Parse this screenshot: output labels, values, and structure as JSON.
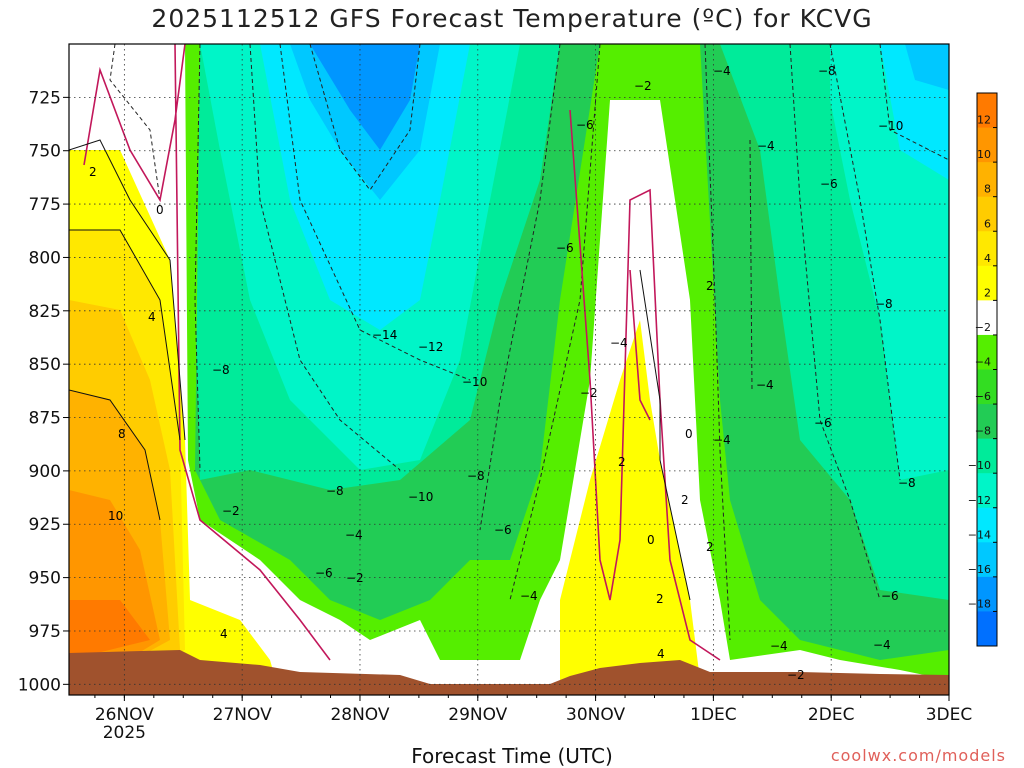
{
  "chart_data": {
    "type": "heatmap",
    "title": "2025112512 GFS Forecast Temperature (ºC) for KCVG",
    "xlabel": "Forecast Time (UTC)",
    "ylabel": "",
    "credit": "coolwx.com/models",
    "x_ticks": [
      {
        "label": "26NOV",
        "sub": "2025",
        "day": 26
      },
      {
        "label": "27NOV",
        "sub": "",
        "day": 27
      },
      {
        "label": "28NOV",
        "sub": "",
        "day": 28
      },
      {
        "label": "29NOV",
        "sub": "",
        "day": 29
      },
      {
        "label": "30NOV",
        "sub": "",
        "day": 30
      },
      {
        "label": "1DEC",
        "sub": "",
        "day": 31
      },
      {
        "label": "2DEC",
        "sub": "",
        "day": 32
      },
      {
        "label": "3DEC",
        "sub": "",
        "day": 33
      }
    ],
    "xlim_days": [
      25.53,
      33.0
    ],
    "y_ticks": [
      725,
      750,
      775,
      800,
      825,
      850,
      875,
      900,
      925,
      950,
      975,
      1000
    ],
    "ylim_hpa": [
      1005,
      700
    ],
    "colorbar": {
      "levels": [
        12,
        10,
        8,
        6,
        4,
        2,
        -2,
        -4,
        -6,
        -8,
        -10,
        -12,
        -14,
        -16,
        -18
      ],
      "colors": [
        "#ff7a00",
        "#ff9600",
        "#ffb200",
        "#ffcc00",
        "#ffe800",
        "#ffff00",
        "#ffffff",
        "#55ee00",
        "#33dd22",
        "#22cc55",
        "#00eb9a",
        "#00f5c8",
        "#00e8ff",
        "#00c8ff",
        "#0096ff",
        "#0070ff"
      ]
    },
    "contour_labels": [
      {
        "t": "2",
        "x": 89,
        "y": 176
      },
      {
        "t": "0",
        "x": 156,
        "y": 214
      },
      {
        "t": "4",
        "x": 148,
        "y": 321
      },
      {
        "t": "8",
        "x": 118,
        "y": 438
      },
      {
        "t": "10",
        "x": 108,
        "y": 520
      },
      {
        "t": "4",
        "x": 220,
        "y": 638
      },
      {
        "t": "−8",
        "x": 212,
        "y": 374
      },
      {
        "t": "−2",
        "x": 222,
        "y": 515
      },
      {
        "t": "−14",
        "x": 372,
        "y": 339
      },
      {
        "t": "−12",
        "x": 418,
        "y": 351
      },
      {
        "t": "−10",
        "x": 462,
        "y": 386
      },
      {
        "t": "−8",
        "x": 326,
        "y": 495
      },
      {
        "t": "−10",
        "x": 408,
        "y": 501
      },
      {
        "t": "−8",
        "x": 467,
        "y": 480
      },
      {
        "t": "−4",
        "x": 345,
        "y": 539
      },
      {
        "t": "−6",
        "x": 315,
        "y": 577
      },
      {
        "t": "−2",
        "x": 346,
        "y": 582
      },
      {
        "t": "−6",
        "x": 494,
        "y": 534
      },
      {
        "t": "−4",
        "x": 520,
        "y": 600
      },
      {
        "t": "−6",
        "x": 556,
        "y": 252
      },
      {
        "t": "−6",
        "x": 576,
        "y": 129
      },
      {
        "t": "−2",
        "x": 634,
        "y": 90
      },
      {
        "t": "−4",
        "x": 610,
        "y": 347
      },
      {
        "t": "−2",
        "x": 580,
        "y": 397
      },
      {
        "t": "2",
        "x": 618,
        "y": 466
      },
      {
        "t": "0",
        "x": 647,
        "y": 544
      },
      {
        "t": "2",
        "x": 681,
        "y": 504
      },
      {
        "t": "2",
        "x": 656,
        "y": 603
      },
      {
        "t": "4",
        "x": 657,
        "y": 658
      },
      {
        "t": "0",
        "x": 685,
        "y": 438
      },
      {
        "t": "2",
        "x": 706,
        "y": 290
      },
      {
        "t": "2",
        "x": 706,
        "y": 551
      },
      {
        "t": "−4",
        "x": 713,
        "y": 75
      },
      {
        "t": "−4",
        "x": 713,
        "y": 444
      },
      {
        "t": "−4",
        "x": 757,
        "y": 150
      },
      {
        "t": "−4",
        "x": 756,
        "y": 389
      },
      {
        "t": "−8",
        "x": 818,
        "y": 75
      },
      {
        "t": "−10",
        "x": 878,
        "y": 130
      },
      {
        "t": "−6",
        "x": 820,
        "y": 188
      },
      {
        "t": "−8",
        "x": 875,
        "y": 308
      },
      {
        "t": "−6",
        "x": 814,
        "y": 427
      },
      {
        "t": "−8",
        "x": 898,
        "y": 487
      },
      {
        "t": "−6",
        "x": 881,
        "y": 600
      },
      {
        "t": "−4",
        "x": 873,
        "y": 649
      },
      {
        "t": "−4",
        "x": 770,
        "y": 650
      },
      {
        "t": "−2",
        "x": 787,
        "y": 679
      }
    ]
  }
}
